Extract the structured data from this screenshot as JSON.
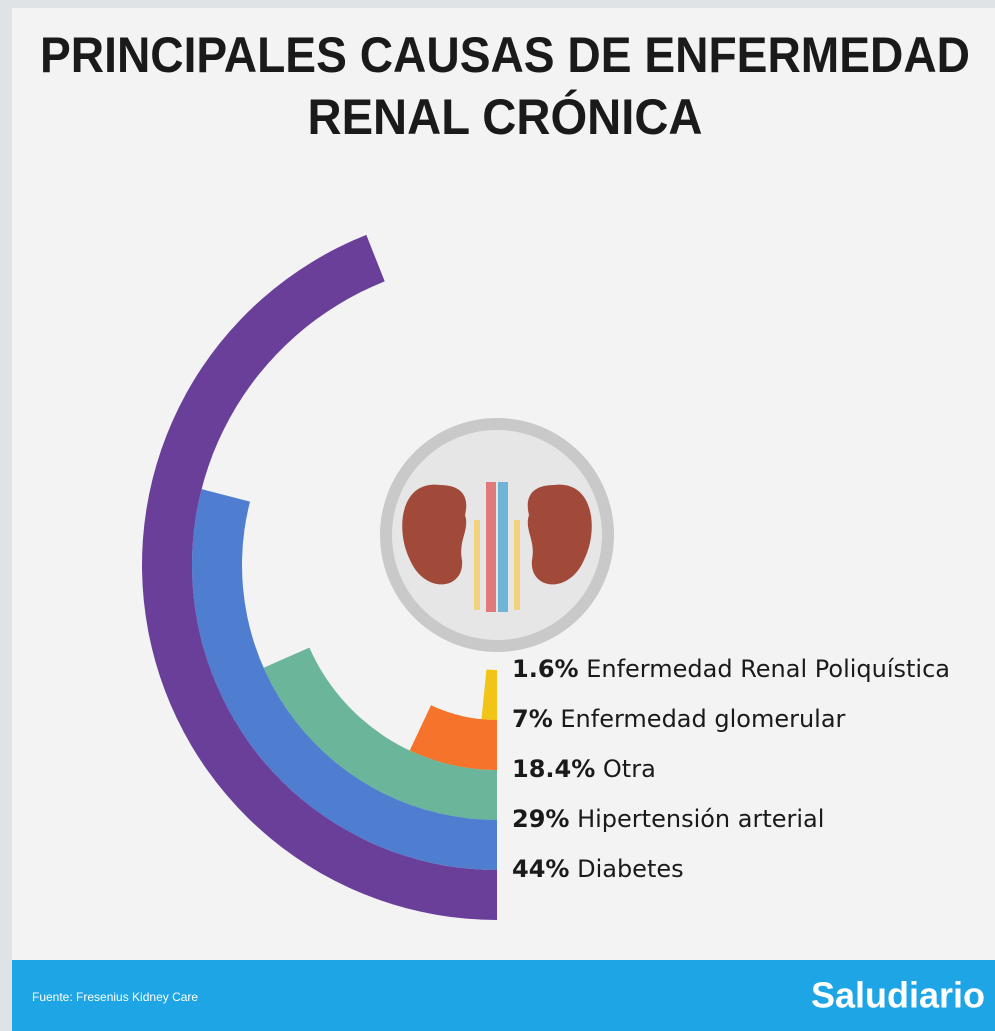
{
  "chart_data": {
    "type": "radial_bar",
    "title": [
      "PRINCIPALES CAUSAS DE ENFERMEDAD",
      "RENAL CRÓNICA"
    ],
    "categories": [
      "Enfermedad Renal Poliquística",
      "Enfermedad glomerular",
      "Otra",
      "Hipertensión arterial",
      "Diabetes"
    ],
    "values": [
      1.6,
      7,
      18.4,
      29,
      44
    ],
    "value_labels": [
      "1.6%",
      "7%",
      "18.4%",
      "29%",
      "44%"
    ],
    "full": 100,
    "colors": [
      "#f2c417",
      "#f5732a",
      "#6bb59a",
      "#4f7ed0",
      "#6a3f9a"
    ]
  },
  "footer": {
    "source": "Fuente: Fresenius Kidney Care",
    "brand": "Saludiario"
  }
}
